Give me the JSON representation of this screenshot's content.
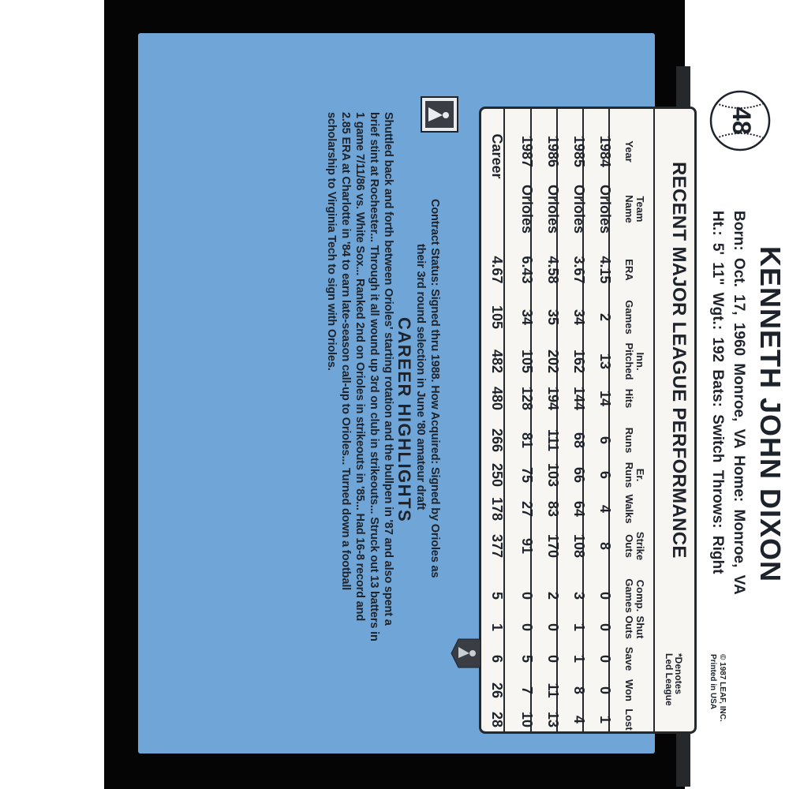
{
  "card_number": "48",
  "player": {
    "name": "KENNETH JOHN DIXON",
    "bio_line1": "Born: Oct. 17, 1960   Monroe, VA   Home: Monroe, VA",
    "bio_line2": "Ht.: 5' 11\"   Wgt.: 192   Bats: Switch   Throws: Right"
  },
  "copyright": {
    "line1": "© 1987 LEAF, INC.",
    "line2": "Printed in USA"
  },
  "logos": {
    "mlb": "MLB",
    "mlbpa": "MLBPA"
  },
  "stats": {
    "title": "RECENT MAJOR LEAGUE PERFORMANCE",
    "note_line1": "*Denotes",
    "note_line2": "Led League",
    "columns": [
      {
        "top": "",
        "bottom": "Year"
      },
      {
        "top": "Team",
        "bottom": "Name"
      },
      {
        "top": "",
        "bottom": "ERA"
      },
      {
        "top": "",
        "bottom": "Games"
      },
      {
        "top": "Inn.",
        "bottom": "Pitched"
      },
      {
        "top": "",
        "bottom": "Hits"
      },
      {
        "top": "",
        "bottom": "Runs"
      },
      {
        "top": "Er.",
        "bottom": "Runs"
      },
      {
        "top": "",
        "bottom": "Walks"
      },
      {
        "top": "Strike",
        "bottom": "Outs"
      },
      {
        "top": "Comp.",
        "bottom": "Games"
      },
      {
        "top": "Shut",
        "bottom": "Outs"
      },
      {
        "top": "",
        "bottom": "Save"
      },
      {
        "top": "",
        "bottom": "Won"
      },
      {
        "top": "",
        "bottom": "Lost"
      }
    ],
    "rows": [
      [
        "1984",
        "Orioles",
        "4.15",
        "2",
        "13",
        "14",
        "6",
        "6",
        "4",
        "8",
        "0",
        "0",
        "0",
        "0",
        "1"
      ],
      [
        "1985",
        "Orioles",
        "3.67",
        "34",
        "162",
        "144",
        "68",
        "66",
        "64",
        "108",
        "3",
        "1",
        "1",
        "8",
        "4"
      ],
      [
        "1986",
        "Orioles",
        "4.58",
        "35",
        "202",
        "194",
        "111",
        "103",
        "83",
        "170",
        "2",
        "0",
        "0",
        "11",
        "13"
      ],
      [
        "1987",
        "Orioles",
        "6.43",
        "34",
        "105",
        "128",
        "81",
        "75",
        "27",
        "91",
        "0",
        "0",
        "5",
        "7",
        "10"
      ],
      [
        "Career",
        "",
        "4.67",
        "105",
        "482",
        "480",
        "266",
        "250",
        "178",
        "377",
        "5",
        "1",
        "6",
        "26",
        "28"
      ]
    ]
  },
  "contract": {
    "line1": "Contract Status: Signed thru 1988. How Acquired: Signed by Orioles as",
    "line2": "their 3rd round selection in June '80 amateur draft"
  },
  "highlights": {
    "heading": "CAREER HIGHLIGHTS",
    "lines": [
      "Shuttled back and forth between Orioles' starting rotation and the bullpen in '87 and also spent a",
      "brief stint at Rochester... Through it all wound up 3rd on club in strikeouts... Struck out 13 batters in",
      "1 game 7/11/86 vs. White Sox... Ranked 2nd on Orioles in strikeouts in '85... Had 16-8 record and",
      "2.85 ERA at Charlotte in '84 to earn late-season call-up to Orioles... Turned down a football",
      "scholarship to Virginia Tech to sign with Orioles."
    ]
  },
  "colors": {
    "card_blue": "#6fa5d7",
    "ink": "#1e232b",
    "box": "#f7f6f2",
    "border": "#050505"
  }
}
